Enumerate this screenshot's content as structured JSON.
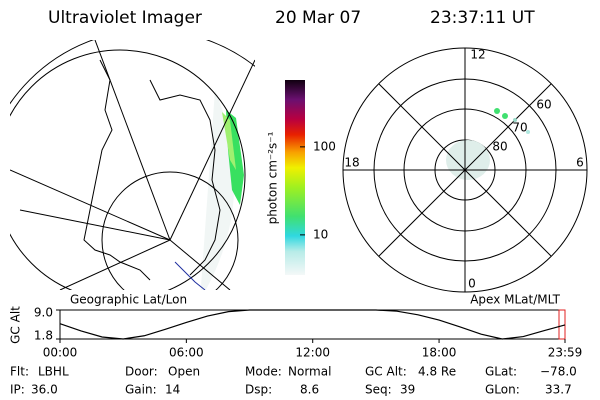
{
  "header": {
    "title": "Ultraviolet Imager",
    "date": "20 Mar 07",
    "time": "23:37:11 UT"
  },
  "panels": {
    "left": "Geographic Lat/Lon",
    "right": "Apex MLat/MLT"
  },
  "polar": {
    "mlt_labels": [
      "12",
      "18",
      "6",
      "0"
    ],
    "lat_labels": [
      "60",
      "70",
      "80"
    ]
  },
  "info": [
    {
      "label": "Flt:",
      "value": "LBHL"
    },
    {
      "label": "Door:",
      "value": "Open"
    },
    {
      "label": "Mode:",
      "value": "Normal"
    },
    {
      "label": "GC Alt:",
      "value": "4.8 Re"
    },
    {
      "label": "GLat:",
      "value": "−78.0"
    },
    {
      "label": "IP:",
      "value": "36.0"
    },
    {
      "label": "Gain:",
      "value": "14"
    },
    {
      "label": "Dsp:",
      "value": "8.6"
    },
    {
      "label": "Seq:",
      "value": "39"
    },
    {
      "label": "GLon:",
      "value": "33.7"
    }
  ],
  "chart_data": [
    {
      "type": "colorbar",
      "label": "photon cm⁻²s⁻¹",
      "log_scale": true,
      "ylim": [
        3.5,
        575
      ],
      "yticks": [
        10,
        100
      ]
    },
    {
      "type": "line",
      "y_label": "GC Alt",
      "color": "#000000",
      "x": [
        0,
        1,
        2,
        3,
        4,
        5,
        6,
        7,
        8,
        9,
        10,
        11,
        12,
        13,
        14,
        15,
        16,
        17,
        18,
        19,
        20,
        21,
        22,
        23,
        23.98
      ],
      "values": [
        5.6,
        3.8,
        2.3,
        1.8,
        2.6,
        4.2,
        5.9,
        7.5,
        8.6,
        9.0,
        9.0,
        9.0,
        9.0,
        9.0,
        9.0,
        9.0,
        8.7,
        7.8,
        6.5,
        4.8,
        3.0,
        1.8,
        2.4,
        3.9,
        5.3
      ],
      "xlim": [
        0,
        23.98
      ],
      "xticks": [
        {
          "value": 0,
          "label": "00:00"
        },
        {
          "value": 6,
          "label": "06:00"
        },
        {
          "value": 12,
          "label": "12:00"
        },
        {
          "value": 18,
          "label": "18:00"
        },
        {
          "value": 23.98,
          "label": "23:59"
        }
      ],
      "ylim": [
        1.8,
        9.0
      ],
      "yticks": [
        {
          "value": 9.0,
          "label": "9.0"
        },
        {
          "value": 1.8,
          "label": "1.8"
        }
      ]
    }
  ]
}
